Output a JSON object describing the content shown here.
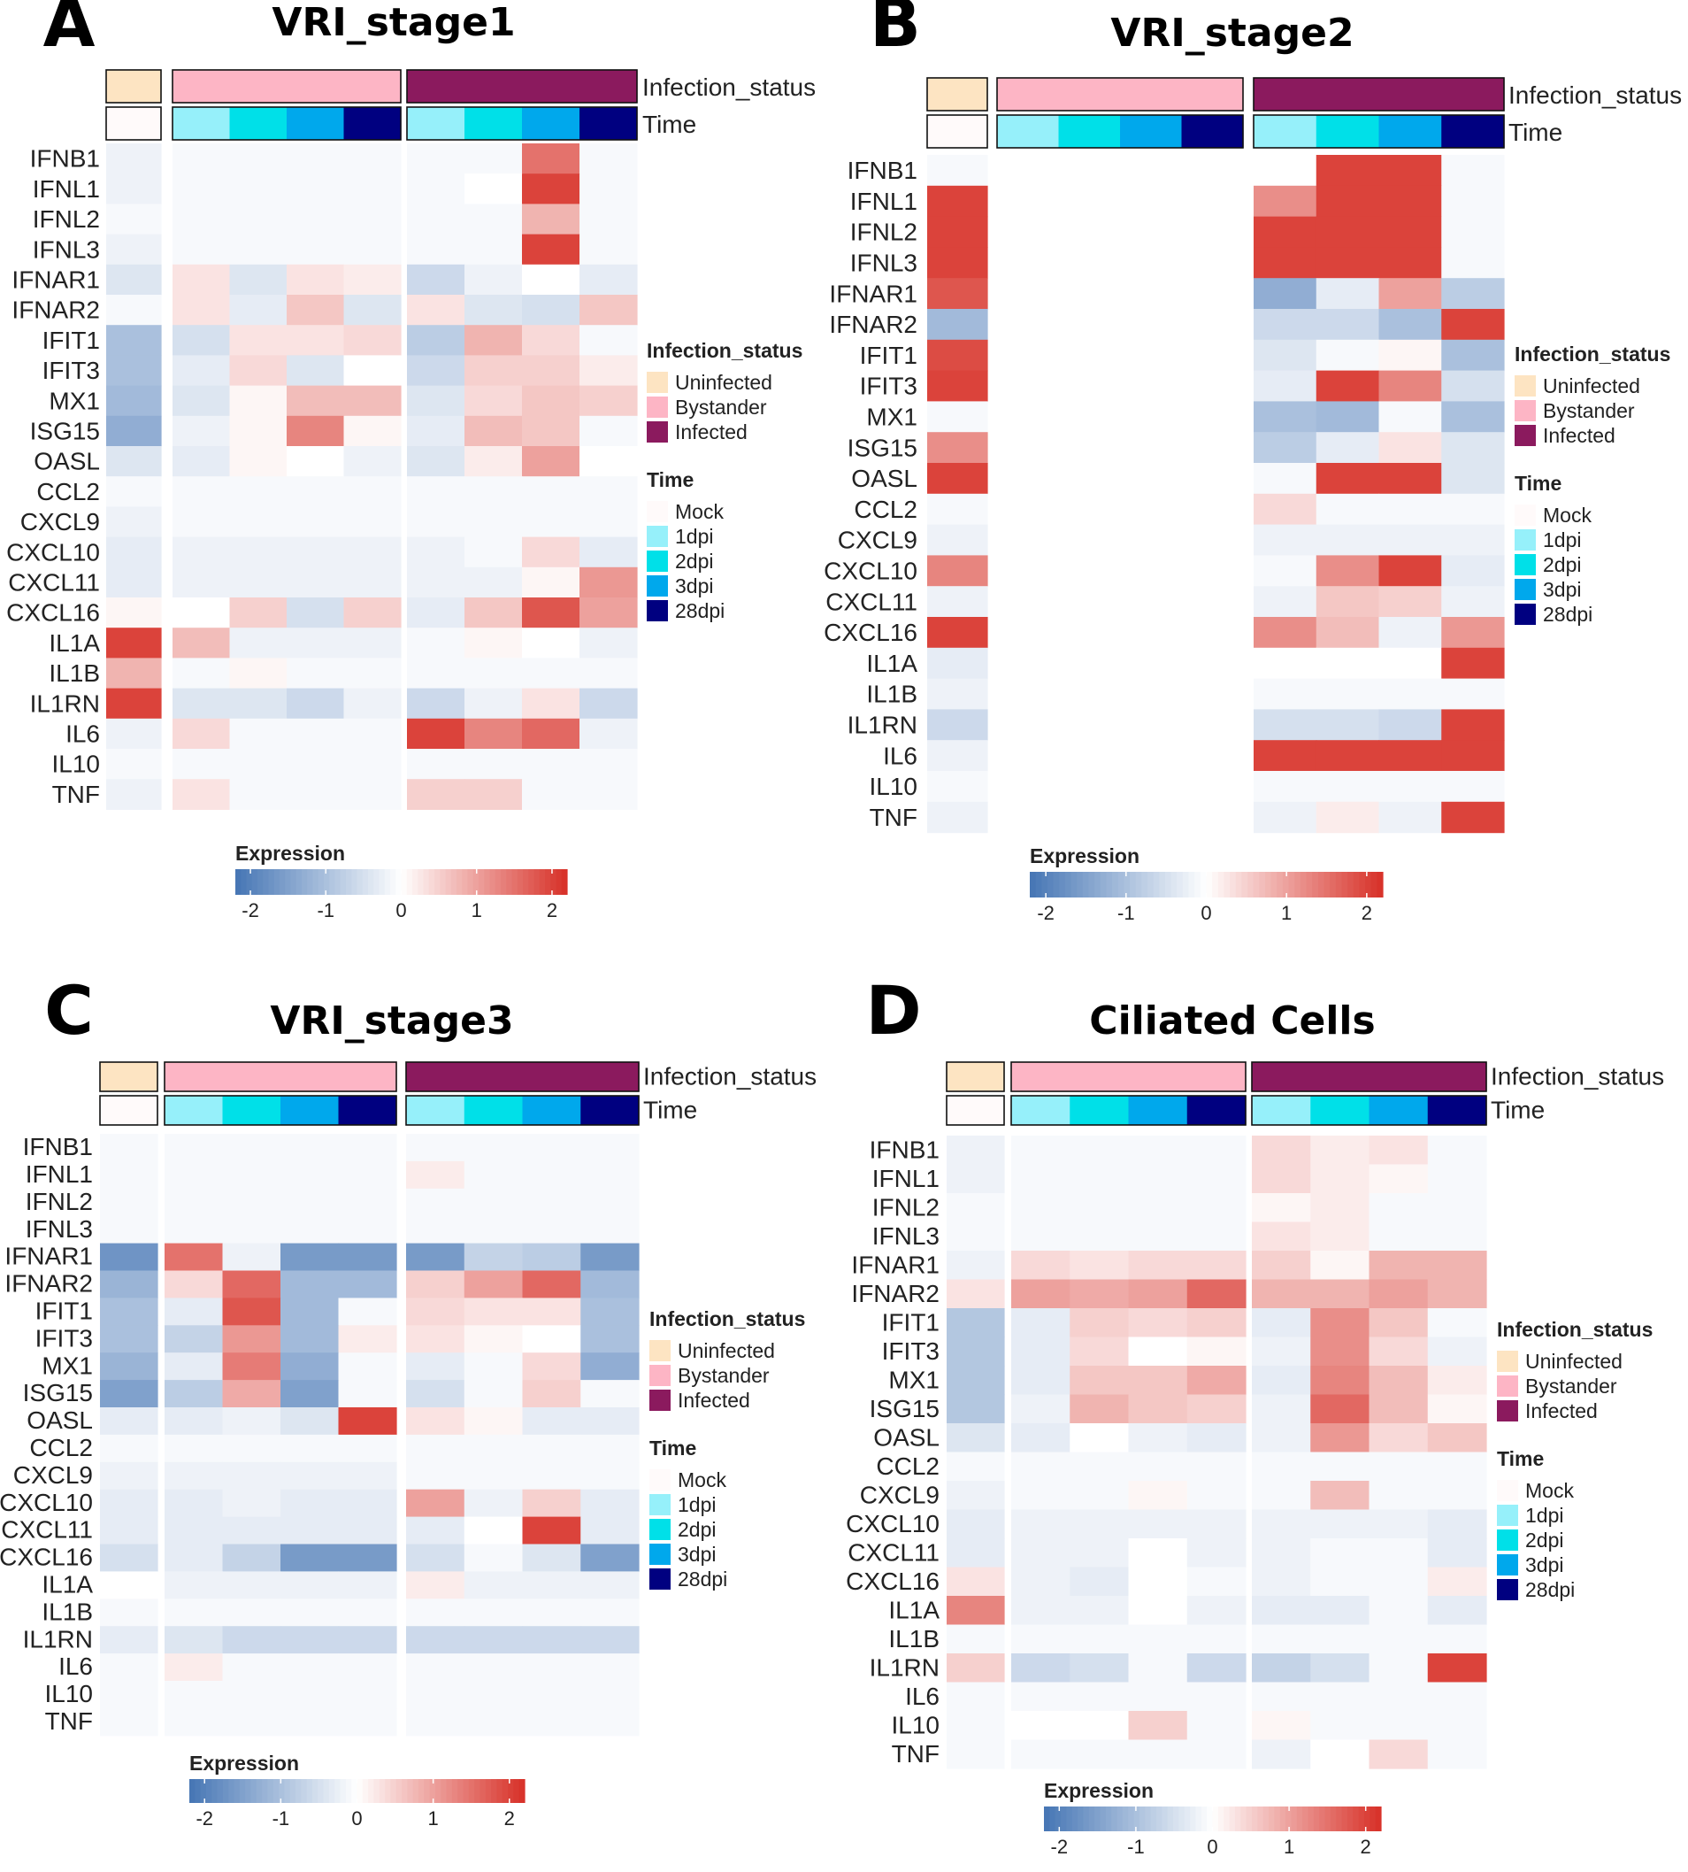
{
  "genes": [
    "IFNB1",
    "IFNL1",
    "IFNL2",
    "IFNL3",
    "IFNAR1",
    "IFNAR2",
    "IFIT1",
    "IFIT3",
    "MX1",
    "ISG15",
    "OASL",
    "CCL2",
    "CXCL9",
    "CXCL10",
    "CXCL11",
    "CXCL16",
    "IL1A",
    "IL1B",
    "IL1RN",
    "IL6",
    "IL10",
    "TNF"
  ],
  "columns": [
    {
      "infection_status": "Uninfected",
      "time": "Mock"
    },
    {
      "infection_status": "Bystander",
      "time": "1dpi"
    },
    {
      "infection_status": "Bystander",
      "time": "2dpi"
    },
    {
      "infection_status": "Bystander",
      "time": "3dpi"
    },
    {
      "infection_status": "Bystander",
      "time": "28dpi"
    },
    {
      "infection_status": "Infected",
      "time": "1dpi"
    },
    {
      "infection_status": "Infected",
      "time": "2dpi"
    },
    {
      "infection_status": "Infected",
      "time": "3dpi"
    },
    {
      "infection_status": "Infected",
      "time": "28dpi"
    }
  ],
  "annotation_labels": {
    "infection_status": "Infection_status",
    "time": "Time"
  },
  "legend": {
    "infection_status": {
      "title": "Infection_status",
      "items": [
        {
          "label": "Uninfected",
          "color": "#fde4c2"
        },
        {
          "label": "Bystander",
          "color": "#fdb5c5"
        },
        {
          "label": "Infected",
          "color": "#8b1a5e"
        }
      ]
    },
    "time": {
      "title": "Time",
      "items": [
        {
          "label": "Mock",
          "color": "#fffafa"
        },
        {
          "label": "1dpi",
          "color": "#96f0fa"
        },
        {
          "label": "2dpi",
          "color": "#00e0e8"
        },
        {
          "label": "3dpi",
          "color": "#00a8ec"
        },
        {
          "label": "28dpi",
          "color": "#000080"
        }
      ]
    }
  },
  "colorbar": {
    "title": "Expression",
    "ticks": [
      "-2",
      "-1",
      "0",
      "1",
      "2"
    ],
    "range": [
      -2.2,
      2.2
    ],
    "low_color": "#4575b4",
    "mid_color": "#ffffff",
    "high_color": "#d73027"
  },
  "chart_data": [
    {
      "type": "heatmap",
      "letter": "A",
      "title": "VRI_stage1",
      "rows": [
        "IFNB1",
        "IFNL1",
        "IFNL2",
        "IFNL3",
        "IFNAR1",
        "IFNAR2",
        "IFIT1",
        "IFIT3",
        "MX1",
        "ISG15",
        "OASL",
        "CCL2",
        "CXCL9",
        "CXCL10",
        "CXCL11",
        "CXCL16",
        "IL1A",
        "IL1B",
        "IL1RN",
        "IL6",
        "IL10",
        "TNF"
      ],
      "values": [
        [
          -0.2,
          -0.1,
          -0.1,
          -0.1,
          -0.1,
          -0.1,
          -0.1,
          1.5,
          -0.1
        ],
        [
          -0.2,
          -0.1,
          -0.1,
          -0.1,
          -0.1,
          -0.1,
          0.0,
          2.0,
          -0.1
        ],
        [
          -0.1,
          -0.1,
          -0.1,
          -0.1,
          -0.1,
          -0.1,
          -0.1,
          0.8,
          -0.1
        ],
        [
          -0.2,
          -0.1,
          -0.1,
          -0.1,
          -0.1,
          -0.1,
          -0.1,
          2.0,
          -0.1
        ],
        [
          -0.4,
          0.3,
          -0.4,
          0.3,
          0.2,
          -0.6,
          -0.2,
          0.0,
          -0.3
        ],
        [
          -0.1,
          0.3,
          -0.3,
          0.6,
          -0.4,
          0.3,
          -0.4,
          -0.5,
          0.6
        ],
        [
          -1.0,
          -0.5,
          0.3,
          0.3,
          0.4,
          -0.8,
          0.8,
          0.4,
          -0.1
        ],
        [
          -1.0,
          -0.3,
          0.4,
          -0.4,
          0.0,
          -0.6,
          0.5,
          0.5,
          0.2
        ],
        [
          -1.1,
          -0.4,
          0.1,
          0.7,
          0.7,
          -0.4,
          0.4,
          0.6,
          0.5
        ],
        [
          -1.3,
          -0.2,
          0.1,
          1.3,
          0.1,
          -0.3,
          0.7,
          0.6,
          -0.1
        ],
        [
          -0.4,
          -0.3,
          0.1,
          0.0,
          -0.2,
          -0.4,
          0.2,
          1.0,
          0.0
        ],
        [
          -0.1,
          -0.1,
          -0.1,
          -0.1,
          -0.1,
          -0.1,
          -0.1,
          -0.1,
          -0.1
        ],
        [
          -0.2,
          -0.1,
          -0.1,
          -0.1,
          -0.1,
          -0.1,
          -0.1,
          -0.1,
          -0.1
        ],
        [
          -0.3,
          -0.2,
          -0.2,
          -0.2,
          -0.2,
          -0.2,
          -0.1,
          0.4,
          -0.3
        ],
        [
          -0.3,
          -0.2,
          -0.2,
          -0.2,
          -0.2,
          -0.2,
          -0.2,
          0.1,
          1.1
        ],
        [
          0.1,
          0.0,
          0.5,
          -0.5,
          0.5,
          -0.3,
          0.6,
          1.8,
          1.0
        ],
        [
          2.0,
          0.7,
          -0.2,
          -0.2,
          -0.2,
          -0.1,
          0.1,
          0.0,
          -0.2
        ],
        [
          0.8,
          -0.1,
          0.1,
          -0.1,
          -0.1,
          -0.1,
          -0.1,
          -0.1,
          -0.1
        ],
        [
          2.0,
          -0.4,
          -0.4,
          -0.6,
          -0.2,
          -0.6,
          -0.2,
          0.3,
          -0.6
        ],
        [
          -0.2,
          0.4,
          -0.1,
          -0.1,
          -0.1,
          2.0,
          1.3,
          1.6,
          -0.2
        ],
        [
          -0.1,
          -0.1,
          -0.1,
          -0.1,
          -0.1,
          -0.1,
          -0.1,
          -0.1,
          -0.1
        ],
        [
          -0.2,
          0.3,
          -0.1,
          -0.1,
          -0.1,
          0.5,
          0.5,
          -0.1,
          -0.1
        ]
      ]
    },
    {
      "type": "heatmap",
      "letter": "B",
      "title": "VRI_stage2",
      "rows": [
        "IFNB1",
        "IFNL1",
        "IFNL2",
        "IFNL3",
        "IFNAR1",
        "IFNAR2",
        "IFIT1",
        "IFIT3",
        "MX1",
        "ISG15",
        "OASL",
        "CCL2",
        "CXCL9",
        "CXCL10",
        "CXCL11",
        "CXCL16",
        "IL1A",
        "IL1B",
        "IL1RN",
        "IL6",
        "IL10",
        "TNF"
      ],
      "values": [
        [
          -0.1,
          null,
          null,
          null,
          null,
          0.0,
          2.0,
          2.0,
          -0.1
        ],
        [
          2.0,
          null,
          null,
          null,
          null,
          1.2,
          2.0,
          2.0,
          -0.1
        ],
        [
          2.0,
          null,
          null,
          null,
          null,
          2.0,
          2.0,
          2.0,
          -0.1
        ],
        [
          2.0,
          null,
          null,
          null,
          null,
          2.0,
          2.0,
          2.0,
          -0.1
        ],
        [
          1.8,
          null,
          null,
          null,
          null,
          -1.3,
          -0.3,
          1.0,
          -0.8
        ],
        [
          -1.1,
          null,
          null,
          null,
          null,
          -0.6,
          -0.6,
          -1.0,
          2.0
        ],
        [
          1.9,
          null,
          null,
          null,
          null,
          -0.4,
          -0.1,
          0.1,
          -1.0
        ],
        [
          2.0,
          null,
          null,
          null,
          null,
          -0.3,
          2.0,
          1.3,
          -0.5
        ],
        [
          -0.1,
          null,
          null,
          null,
          null,
          -1.0,
          -1.1,
          -0.1,
          -1.0
        ],
        [
          1.2,
          null,
          null,
          null,
          null,
          -0.8,
          -0.3,
          0.3,
          -0.4
        ],
        [
          2.0,
          null,
          null,
          null,
          null,
          -0.1,
          2.0,
          2.0,
          -0.4
        ],
        [
          -0.1,
          null,
          null,
          null,
          null,
          0.4,
          -0.1,
          -0.1,
          -0.1
        ],
        [
          -0.2,
          null,
          null,
          null,
          null,
          -0.2,
          -0.2,
          -0.2,
          -0.2
        ],
        [
          1.3,
          null,
          null,
          null,
          null,
          -0.1,
          1.2,
          2.0,
          -0.3
        ],
        [
          -0.2,
          null,
          null,
          null,
          null,
          -0.2,
          0.6,
          0.5,
          -0.2
        ],
        [
          2.0,
          null,
          null,
          null,
          null,
          1.2,
          0.7,
          -0.2,
          1.1
        ],
        [
          -0.3,
          null,
          null,
          null,
          null,
          0.0,
          0.0,
          0.0,
          2.0
        ],
        [
          -0.2,
          null,
          null,
          null,
          null,
          -0.1,
          -0.1,
          -0.1,
          -0.1
        ],
        [
          -0.6,
          null,
          null,
          null,
          null,
          -0.5,
          -0.5,
          -0.6,
          2.0
        ],
        [
          -0.2,
          null,
          null,
          null,
          null,
          2.0,
          2.0,
          2.0,
          2.0
        ],
        [
          -0.1,
          null,
          null,
          null,
          null,
          -0.1,
          -0.1,
          -0.1,
          -0.1
        ],
        [
          -0.2,
          null,
          null,
          null,
          null,
          -0.2,
          0.2,
          -0.2,
          2.0
        ]
      ]
    },
    {
      "type": "heatmap",
      "letter": "C",
      "title": "VRI_stage3",
      "rows": [
        "IFNB1",
        "IFNL1",
        "IFNL2",
        "IFNL3",
        "IFNAR1",
        "IFNAR2",
        "IFIT1",
        "IFIT3",
        "MX1",
        "ISG15",
        "OASL",
        "CCL2",
        "CXCL9",
        "CXCL10",
        "CXCL11",
        "CXCL16",
        "IL1A",
        "IL1B",
        "IL1RN",
        "IL6",
        "IL10",
        "TNF"
      ],
      "values": [
        [
          -0.1,
          -0.1,
          -0.1,
          -0.1,
          -0.1,
          -0.1,
          -0.1,
          -0.1,
          -0.1
        ],
        [
          -0.1,
          -0.1,
          -0.1,
          -0.1,
          -0.1,
          0.2,
          -0.1,
          -0.1,
          -0.1
        ],
        [
          -0.1,
          -0.1,
          -0.1,
          -0.1,
          -0.1,
          -0.1,
          -0.1,
          -0.1,
          -0.1
        ],
        [
          -0.1,
          -0.1,
          -0.1,
          -0.1,
          -0.1,
          -0.1,
          -0.1,
          -0.1,
          -0.1
        ],
        [
          -1.7,
          1.5,
          -0.2,
          -1.6,
          -1.6,
          -1.6,
          -0.7,
          -0.8,
          -1.6
        ],
        [
          -1.2,
          0.4,
          1.6,
          -1.1,
          -1.1,
          0.5,
          1.0,
          1.6,
          -1.1
        ],
        [
          -1.0,
          -0.3,
          1.8,
          -1.1,
          -0.1,
          0.4,
          0.3,
          0.3,
          -1.0
        ],
        [
          -1.0,
          -0.7,
          1.1,
          -1.1,
          0.2,
          0.3,
          0.1,
          0.0,
          -1.0
        ],
        [
          -1.2,
          -0.3,
          1.4,
          -1.3,
          -0.1,
          -0.3,
          -0.1,
          0.4,
          -1.3
        ],
        [
          -1.5,
          -0.8,
          0.9,
          -1.5,
          -0.1,
          -0.5,
          -0.1,
          0.5,
          -0.1
        ],
        [
          -0.3,
          -0.3,
          -0.2,
          -0.4,
          2.0,
          0.3,
          0.1,
          -0.3,
          -0.3
        ],
        [
          -0.1,
          -0.1,
          -0.1,
          -0.1,
          -0.1,
          -0.1,
          -0.1,
          -0.1,
          -0.1
        ],
        [
          -0.2,
          -0.2,
          -0.2,
          -0.2,
          -0.2,
          -0.1,
          -0.1,
          -0.1,
          -0.1
        ],
        [
          -0.3,
          -0.3,
          -0.2,
          -0.3,
          -0.3,
          1.0,
          -0.2,
          0.5,
          -0.3
        ],
        [
          -0.3,
          -0.3,
          -0.3,
          -0.3,
          -0.3,
          -0.3,
          0.0,
          2.0,
          -0.3
        ],
        [
          -0.5,
          -0.3,
          -0.7,
          -1.6,
          -1.6,
          -0.5,
          -0.1,
          -0.4,
          -1.5
        ],
        [
          0.0,
          -0.2,
          -0.2,
          -0.2,
          -0.2,
          0.2,
          -0.2,
          -0.2,
          -0.2
        ],
        [
          -0.1,
          -0.1,
          -0.1,
          -0.1,
          -0.1,
          -0.1,
          -0.1,
          -0.1,
          -0.1
        ],
        [
          -0.3,
          -0.4,
          -0.6,
          -0.6,
          -0.6,
          -0.6,
          -0.6,
          -0.6,
          -0.6
        ],
        [
          -0.1,
          0.2,
          -0.1,
          -0.1,
          -0.1,
          -0.1,
          -0.1,
          -0.1,
          -0.1
        ],
        [
          -0.1,
          -0.1,
          -0.1,
          -0.1,
          -0.1,
          -0.1,
          -0.1,
          -0.1,
          -0.1
        ],
        [
          -0.1,
          -0.1,
          -0.1,
          -0.1,
          -0.1,
          -0.1,
          -0.1,
          -0.1,
          -0.1
        ]
      ]
    },
    {
      "type": "heatmap",
      "letter": "D",
      "title": "Ciliated Cells",
      "rows": [
        "IFNB1",
        "IFNL1",
        "IFNL2",
        "IFNL3",
        "IFNAR1",
        "IFNAR2",
        "IFIT1",
        "IFIT3",
        "MX1",
        "ISG15",
        "OASL",
        "CCL2",
        "CXCL9",
        "CXCL10",
        "CXCL11",
        "CXCL16",
        "IL1A",
        "IL1B",
        "IL1RN",
        "IL6",
        "IL10",
        "TNF"
      ],
      "values": [
        [
          -0.2,
          -0.1,
          -0.1,
          -0.1,
          -0.1,
          0.4,
          0.2,
          0.3,
          -0.1
        ],
        [
          -0.2,
          -0.1,
          -0.1,
          -0.1,
          -0.1,
          0.4,
          0.2,
          0.1,
          -0.1
        ],
        [
          -0.1,
          -0.1,
          -0.1,
          -0.1,
          -0.1,
          0.1,
          0.2,
          -0.1,
          -0.1
        ],
        [
          -0.1,
          -0.1,
          -0.1,
          -0.1,
          -0.1,
          0.3,
          0.2,
          -0.1,
          -0.1
        ],
        [
          -0.2,
          0.4,
          0.3,
          0.4,
          0.4,
          0.5,
          0.1,
          0.8,
          0.8
        ],
        [
          0.3,
          1.0,
          0.9,
          1.0,
          1.6,
          0.8,
          0.8,
          1.0,
          0.8
        ],
        [
          -0.9,
          -0.3,
          0.5,
          0.4,
          0.5,
          -0.3,
          1.2,
          0.6,
          -0.1
        ],
        [
          -0.9,
          -0.3,
          0.4,
          0.0,
          0.1,
          -0.2,
          1.2,
          0.4,
          -0.2
        ],
        [
          -0.9,
          -0.3,
          0.6,
          0.6,
          0.9,
          -0.3,
          1.3,
          0.7,
          0.2
        ],
        [
          -0.9,
          -0.2,
          0.8,
          0.6,
          0.5,
          -0.2,
          1.6,
          0.7,
          0.1
        ],
        [
          -0.4,
          -0.3,
          0.0,
          -0.2,
          -0.3,
          -0.2,
          1.1,
          0.4,
          0.6
        ],
        [
          -0.1,
          -0.1,
          -0.1,
          -0.1,
          -0.1,
          -0.1,
          -0.1,
          -0.1,
          -0.1
        ],
        [
          -0.2,
          -0.1,
          -0.1,
          0.1,
          -0.1,
          -0.1,
          0.7,
          -0.1,
          -0.1
        ],
        [
          -0.3,
          -0.2,
          -0.2,
          -0.2,
          -0.2,
          -0.2,
          -0.2,
          -0.2,
          -0.3
        ],
        [
          -0.3,
          -0.2,
          -0.2,
          0.0,
          -0.2,
          -0.2,
          -0.1,
          -0.1,
          -0.3
        ],
        [
          0.3,
          -0.2,
          -0.3,
          0.0,
          -0.1,
          -0.2,
          -0.1,
          -0.1,
          0.2
        ],
        [
          1.3,
          -0.2,
          -0.2,
          0.0,
          -0.2,
          -0.3,
          -0.3,
          -0.1,
          -0.3
        ],
        [
          -0.1,
          -0.1,
          -0.1,
          -0.1,
          -0.1,
          -0.1,
          -0.1,
          -0.1,
          -0.1
        ],
        [
          0.5,
          -0.6,
          -0.5,
          -0.1,
          -0.6,
          -0.7,
          -0.5,
          -0.1,
          2.0
        ],
        [
          -0.1,
          -0.1,
          -0.1,
          -0.1,
          -0.1,
          -0.1,
          -0.1,
          -0.1,
          -0.1
        ],
        [
          -0.1,
          0.0,
          0.0,
          0.5,
          -0.1,
          0.1,
          -0.1,
          -0.1,
          -0.1
        ],
        [
          -0.1,
          -0.1,
          -0.1,
          -0.1,
          -0.1,
          -0.2,
          0.0,
          0.4,
          -0.1
        ]
      ]
    }
  ]
}
